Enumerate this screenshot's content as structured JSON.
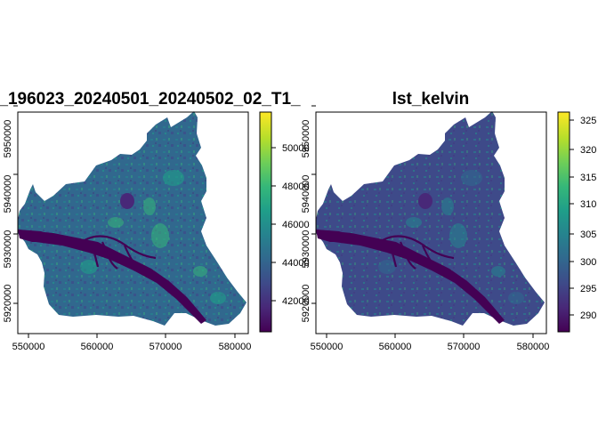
{
  "panels": [
    {
      "title": "_196023_20240501_20240502_02_T1_",
      "x_ticks": [
        "550000",
        "560000",
        "570000",
        "580000"
      ],
      "y_ticks": [
        "5920000",
        "5930000",
        "5940000",
        "5950000"
      ],
      "legend_ticks": [
        "42000",
        "44000",
        "46000",
        "48000",
        "50000"
      ]
    },
    {
      "title": "lst_kelvin",
      "x_ticks": [
        "550000",
        "560000",
        "570000",
        "580000"
      ],
      "y_ticks": [
        "5920000",
        "5930000",
        "5940000",
        "5950000"
      ],
      "legend_ticks": [
        "290",
        "295",
        "300",
        "305",
        "310",
        "315",
        "320",
        "325"
      ]
    }
  ],
  "colormap": "viridis",
  "palette": [
    "#440154",
    "#482878",
    "#3e4a89",
    "#31688e",
    "#26828e",
    "#1f9e89",
    "#35b779",
    "#6ece58",
    "#b5de2b",
    "#fde725"
  ]
}
